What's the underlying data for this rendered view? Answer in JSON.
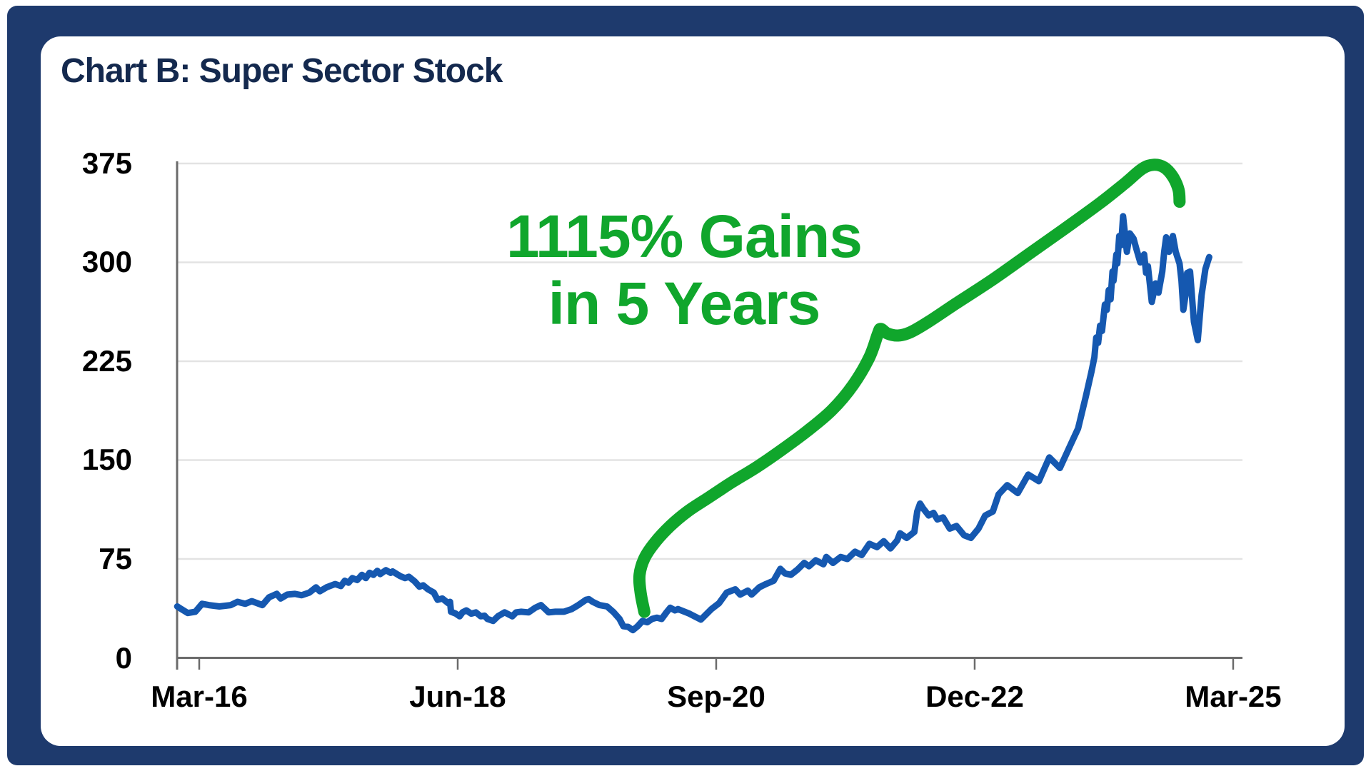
{
  "frame": {
    "border_color": "#1e3a6d",
    "card_background": "#ffffff"
  },
  "title": "Chart B: Super Sector Stock",
  "title_color": "#14294e",
  "annotation": {
    "line1": "1115% Gains",
    "line2": "in 5 Years",
    "color": "#10a62c"
  },
  "chart_data": {
    "type": "line",
    "title": "Chart B: Super Sector Stock",
    "xlabel": "",
    "ylabel": "",
    "grid": true,
    "legend": false,
    "colors": {
      "price_line": "#1558b0",
      "gain_arrow": "#10a62c",
      "gridline": "#e3e3e3",
      "axis": "#6b6b6b"
    },
    "y_axis": {
      "range": [
        0,
        375
      ],
      "ticks": [
        {
          "label": "375",
          "value": 375
        },
        {
          "label": "300",
          "value": 300
        },
        {
          "label": "225",
          "value": 225
        },
        {
          "label": "150",
          "value": 150
        },
        {
          "label": "75",
          "value": 75
        },
        {
          "label": "0",
          "value": 0
        }
      ]
    },
    "x_axis": {
      "unit": "months since Mar-16",
      "ticks": [
        {
          "label": "Mar-16",
          "month": 0
        },
        {
          "label": "Jun-18",
          "month": 27
        },
        {
          "label": "Sep-20",
          "month": 54
        },
        {
          "label": "Dec-22",
          "month": 81
        },
        {
          "label": "Mar-25",
          "month": 108
        }
      ]
    },
    "series": [
      {
        "name": "Super Sector Stock price",
        "color": "#1558b0",
        "points": [
          [
            -2.3,
            39
          ],
          [
            -1.2,
            34
          ],
          [
            -0.4,
            35
          ],
          [
            0.3,
            41
          ],
          [
            1,
            40
          ],
          [
            2.1,
            39
          ],
          [
            3.3,
            40
          ],
          [
            4,
            42.5
          ],
          [
            4.8,
            41
          ],
          [
            5.5,
            43
          ],
          [
            6.6,
            40
          ],
          [
            7.3,
            46
          ],
          [
            8.1,
            48.5
          ],
          [
            8.5,
            45
          ],
          [
            9.2,
            48
          ],
          [
            10,
            48.5
          ],
          [
            10.7,
            47.5
          ],
          [
            11.5,
            49.5
          ],
          [
            12.2,
            53.5
          ],
          [
            12.6,
            50.5
          ],
          [
            13.3,
            53.5
          ],
          [
            14.2,
            56
          ],
          [
            14.8,
            54.5
          ],
          [
            15.2,
            58.5
          ],
          [
            15.6,
            57
          ],
          [
            16,
            60.5
          ],
          [
            16.5,
            59
          ],
          [
            17,
            63
          ],
          [
            17.4,
            60.5
          ],
          [
            17.8,
            64.5
          ],
          [
            18.2,
            63
          ],
          [
            18.6,
            66
          ],
          [
            18.9,
            63.5
          ],
          [
            19.5,
            66.5
          ],
          [
            20,
            64.5
          ],
          [
            20.2,
            65.5
          ],
          [
            21,
            62
          ],
          [
            21.5,
            60.5
          ],
          [
            21.9,
            61.5
          ],
          [
            22.5,
            58
          ],
          [
            23,
            54
          ],
          [
            23.4,
            55
          ],
          [
            23.9,
            52
          ],
          [
            24.5,
            49.5
          ],
          [
            24.9,
            44
          ],
          [
            25.4,
            45
          ],
          [
            26,
            41.5
          ],
          [
            26.2,
            42.5
          ],
          [
            26.3,
            35
          ],
          [
            26.8,
            33.5
          ],
          [
            27.2,
            31.5
          ],
          [
            27.5,
            34.5
          ],
          [
            27.9,
            36
          ],
          [
            28.4,
            33.5
          ],
          [
            28.9,
            34.5
          ],
          [
            29.4,
            31.5
          ],
          [
            29.8,
            32
          ],
          [
            30.1,
            29.5
          ],
          [
            30.7,
            28
          ],
          [
            31.2,
            31.5
          ],
          [
            31.9,
            34.5
          ],
          [
            32.7,
            31.5
          ],
          [
            33.1,
            34.5
          ],
          [
            33.6,
            35
          ],
          [
            34.4,
            34.5
          ],
          [
            35.1,
            38
          ],
          [
            35.7,
            40
          ],
          [
            36.5,
            34.5
          ],
          [
            37.2,
            35
          ],
          [
            38.1,
            35
          ],
          [
            38.9,
            37
          ],
          [
            39.6,
            40
          ],
          [
            40.4,
            44
          ],
          [
            40.7,
            44.5
          ],
          [
            41.1,
            42.5
          ],
          [
            41.8,
            40
          ],
          [
            42.6,
            39
          ],
          [
            43.3,
            34.5
          ],
          [
            43.9,
            29.5
          ],
          [
            44.3,
            24
          ],
          [
            44.8,
            23.5
          ],
          [
            45.3,
            21
          ],
          [
            45.8,
            24
          ],
          [
            46.3,
            28
          ],
          [
            46.8,
            27
          ],
          [
            47.3,
            29.5
          ],
          [
            47.8,
            30.5
          ],
          [
            48.3,
            29.5
          ],
          [
            48.8,
            34.5
          ],
          [
            49.2,
            38
          ],
          [
            49.7,
            36
          ],
          [
            50,
            37
          ],
          [
            51.2,
            33.5
          ],
          [
            52.4,
            29
          ],
          [
            53.5,
            37
          ],
          [
            54.3,
            41.5
          ],
          [
            55.1,
            49.5
          ],
          [
            56,
            52
          ],
          [
            56.5,
            48
          ],
          [
            57.3,
            51
          ],
          [
            57.7,
            48
          ],
          [
            58.5,
            53.5
          ],
          [
            59.2,
            56
          ],
          [
            60,
            58.5
          ],
          [
            60.7,
            67.5
          ],
          [
            61.2,
            64
          ],
          [
            61.8,
            63
          ],
          [
            62.5,
            67
          ],
          [
            63.2,
            72
          ],
          [
            63.7,
            69.5
          ],
          [
            64.4,
            74
          ],
          [
            65.2,
            71
          ],
          [
            65.5,
            76.5
          ],
          [
            66.2,
            72
          ],
          [
            67,
            76.5
          ],
          [
            67.7,
            75
          ],
          [
            68.5,
            80.5
          ],
          [
            69.2,
            78
          ],
          [
            70,
            86.5
          ],
          [
            70.8,
            84
          ],
          [
            71.5,
            88.5
          ],
          [
            72.2,
            83
          ],
          [
            72.9,
            89
          ],
          [
            73.2,
            94.5
          ],
          [
            73.9,
            91
          ],
          [
            74.7,
            95.5
          ],
          [
            75,
            111
          ],
          [
            75.3,
            117
          ],
          [
            75.6,
            113.5
          ],
          [
            76.2,
            108
          ],
          [
            76.7,
            110
          ],
          [
            77.1,
            105
          ],
          [
            77.7,
            106.5
          ],
          [
            78.4,
            98
          ],
          [
            79.1,
            100
          ],
          [
            79.9,
            93
          ],
          [
            80.6,
            91
          ],
          [
            81.4,
            98
          ],
          [
            82.1,
            108
          ],
          [
            82.9,
            111
          ],
          [
            83.5,
            124
          ],
          [
            84.4,
            131
          ],
          [
            85.5,
            125
          ],
          [
            86.6,
            139
          ],
          [
            87.7,
            134
          ],
          [
            88.8,
            152
          ],
          [
            89.9,
            144
          ],
          [
            91.1,
            163
          ],
          [
            91.8,
            174
          ],
          [
            92.6,
            198
          ],
          [
            93.2,
            217
          ],
          [
            93.5,
            228
          ],
          [
            93.7,
            243
          ],
          [
            93.9,
            239
          ],
          [
            94.1,
            252
          ],
          [
            94.3,
            248
          ],
          [
            94.6,
            268
          ],
          [
            94.8,
            264
          ],
          [
            95,
            279
          ],
          [
            95.2,
            272
          ],
          [
            95.4,
            293
          ],
          [
            95.5,
            286
          ],
          [
            95.8,
            306
          ],
          [
            95.9,
            299
          ],
          [
            96.1,
            320
          ],
          [
            96.3,
            313
          ],
          [
            96.5,
            335
          ],
          [
            96.9,
            308
          ],
          [
            97.2,
            322
          ],
          [
            97.6,
            318
          ],
          [
            97.9,
            310
          ],
          [
            98.3,
            300
          ],
          [
            98.7,
            306
          ],
          [
            98.9,
            292
          ],
          [
            99.1,
            297
          ],
          [
            99.5,
            270
          ],
          [
            99.9,
            284
          ],
          [
            100.2,
            277
          ],
          [
            100.6,
            293
          ],
          [
            100.8,
            308
          ],
          [
            101,
            319
          ],
          [
            101.3,
            308
          ],
          [
            101.5,
            315
          ],
          [
            101.7,
            320
          ],
          [
            102,
            308
          ],
          [
            102.4,
            299
          ],
          [
            102.6,
            286
          ],
          [
            102.8,
            264
          ],
          [
            103.1,
            279
          ],
          [
            103.2,
            292
          ],
          [
            103.5,
            293
          ],
          [
            103.9,
            255
          ],
          [
            104.3,
            241
          ],
          [
            104.7,
            275
          ],
          [
            105.1,
            295
          ],
          [
            105.5,
            304
          ]
        ]
      }
    ],
    "annotation_arrow": {
      "name": "1115% gains arrow",
      "color": "#10a62c",
      "points": [
        [
          46.5,
          34.9
        ],
        [
          46.1,
          49.6
        ],
        [
          46,
          63.1
        ],
        [
          46.5,
          75.5
        ],
        [
          47.6,
          87.5
        ],
        [
          49.2,
          100
        ],
        [
          51,
          111
        ],
        [
          53.3,
          122
        ],
        [
          55.6,
          133
        ],
        [
          58.3,
          145
        ],
        [
          60.9,
          158
        ],
        [
          63.5,
          172
        ],
        [
          66.1,
          188
        ],
        [
          68.3,
          207
        ],
        [
          70,
          228
        ],
        [
          70.9,
          246
        ],
        [
          71.2,
          249.5
        ],
        [
          71.9,
          246
        ],
        [
          73,
          244.5
        ],
        [
          74.3,
          247
        ],
        [
          76.2,
          255
        ],
        [
          79.1,
          269
        ],
        [
          82.9,
          287
        ],
        [
          86.6,
          306
        ],
        [
          90.3,
          325
        ],
        [
          94.1,
          345
        ],
        [
          96.7,
          360
        ],
        [
          98.5,
          371
        ],
        [
          99.7,
          374
        ],
        [
          100.8,
          372
        ],
        [
          101.7,
          365
        ],
        [
          102.3,
          355
        ],
        [
          102.4,
          346
        ]
      ]
    }
  }
}
